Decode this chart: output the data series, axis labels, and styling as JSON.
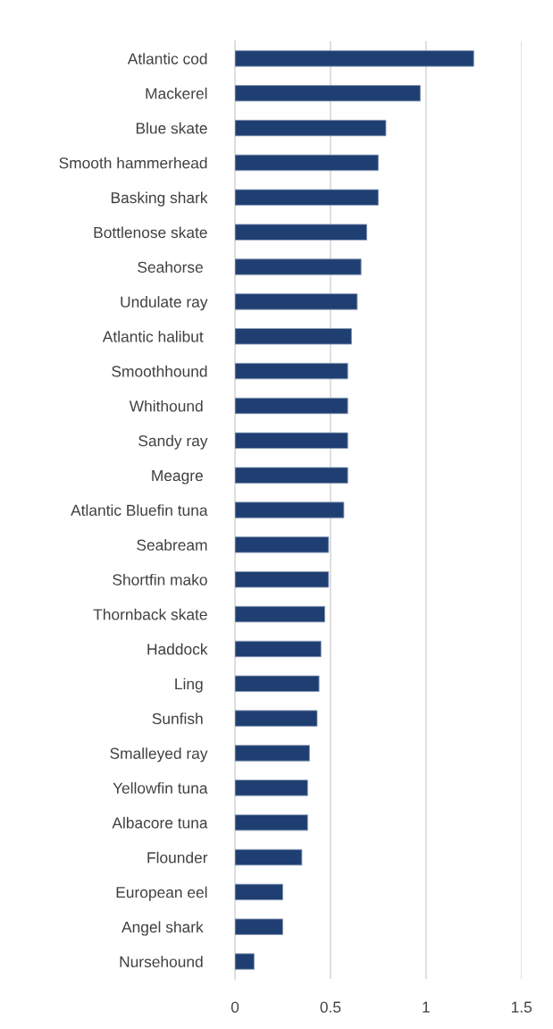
{
  "chart_data": {
    "type": "bar",
    "orientation": "horizontal",
    "categories": [
      "Atlantic cod",
      "Mackerel",
      "Blue skate",
      "Smooth hammerhead",
      "Basking shark",
      "Bottlenose skate",
      "Seahorse ",
      "Undulate ray",
      "Atlantic halibut ",
      "Smoothhound",
      "Whithound ",
      "Sandy ray",
      "Meagre ",
      "Atlantic Bluefin tuna",
      "Seabream",
      "Shortfin mako",
      "Thornback skate",
      "Haddock",
      "Ling ",
      "Sunfish ",
      "Smalleyed ray",
      "Yellowfin tuna",
      "Albacore tuna",
      "Flounder",
      "European eel",
      "Angel shark ",
      "Nursehound "
    ],
    "values": [
      1.25,
      0.97,
      0.79,
      0.75,
      0.75,
      0.69,
      0.66,
      0.64,
      0.61,
      0.59,
      0.59,
      0.59,
      0.59,
      0.57,
      0.49,
      0.49,
      0.47,
      0.45,
      0.44,
      0.43,
      0.39,
      0.38,
      0.38,
      0.35,
      0.25,
      0.25,
      0.1
    ],
    "color": "#1f3f73",
    "xlim": [
      0,
      1.5
    ],
    "xticks": [
      0,
      0.5,
      1,
      1.5
    ],
    "grid": "x"
  }
}
